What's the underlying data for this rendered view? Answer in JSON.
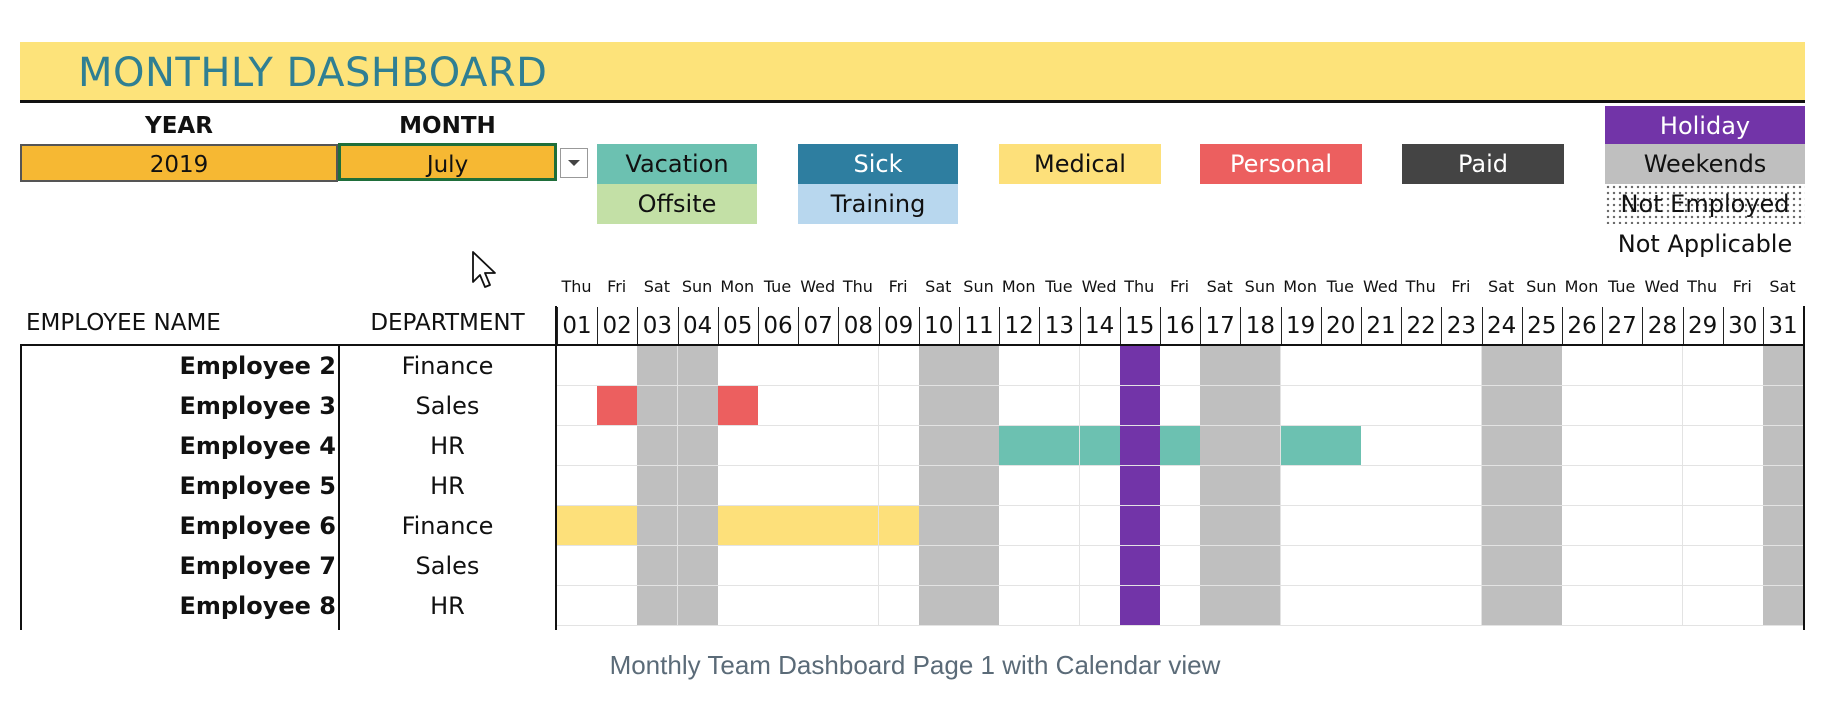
{
  "banner": {
    "title": "MONTHLY DASHBOARD"
  },
  "selectors": {
    "year_label": "YEAR",
    "year_value": "2019",
    "month_label": "MONTH",
    "month_value": "July"
  },
  "legend": [
    {
      "key": "vacation",
      "label": "Vacation",
      "bg": "#6cc1b1",
      "fg": "#111111"
    },
    {
      "key": "sick",
      "label": "Sick",
      "bg": "#2e7ea0",
      "fg": "#ffffff"
    },
    {
      "key": "medical",
      "label": "Medical",
      "bg": "#fde07a",
      "fg": "#111111"
    },
    {
      "key": "personal",
      "label": "Personal",
      "bg": "#ec5f5f",
      "fg": "#ffffff"
    },
    {
      "key": "paid",
      "label": "Paid",
      "bg": "#444444",
      "fg": "#ffffff"
    },
    {
      "key": "holiday",
      "label": "Holiday",
      "bg": "#7234a8",
      "fg": "#ffffff"
    },
    {
      "key": "offsite",
      "label": "Offsite",
      "bg": "#c3e0a6",
      "fg": "#111111"
    },
    {
      "key": "training",
      "label": "Training",
      "bg": "#b8d7ee",
      "fg": "#111111"
    },
    {
      "key": "weekends",
      "label": "Weekends",
      "bg": "#bfbfbf",
      "fg": "#111111"
    },
    {
      "key": "not_employed",
      "label": "Not Employed",
      "bg": "#ffffff",
      "fg": "#111111"
    },
    {
      "key": "not_applicable",
      "label": "Not Applicable",
      "bg": "#ffffff",
      "fg": "#111111"
    }
  ],
  "table": {
    "name_header": "EMPLOYEE NAME",
    "dept_header": "DEPARTMENT",
    "day_names": [
      "Thu",
      "Fri",
      "Sat",
      "Sun",
      "Mon",
      "Tue",
      "Wed",
      "Thu",
      "Fri",
      "Sat",
      "Sun",
      "Mon",
      "Tue",
      "Wed",
      "Thu",
      "Fri",
      "Sat",
      "Sun",
      "Mon",
      "Tue",
      "Wed",
      "Thu",
      "Fri",
      "Sat",
      "Sun",
      "Mon",
      "Tue",
      "Wed",
      "Thu",
      "Fri",
      "Sat"
    ],
    "day_numbers": [
      "01",
      "02",
      "03",
      "04",
      "05",
      "06",
      "07",
      "08",
      "09",
      "10",
      "11",
      "12",
      "13",
      "14",
      "15",
      "16",
      "17",
      "18",
      "19",
      "20",
      "21",
      "22",
      "23",
      "24",
      "25",
      "26",
      "27",
      "28",
      "29",
      "30",
      "31"
    ],
    "weekend_days": [
      3,
      4,
      10,
      11,
      17,
      18,
      24,
      25,
      31
    ],
    "holiday_days": [
      15
    ],
    "rows": [
      {
        "name": "Employee 2",
        "dept": "Finance",
        "marks": {}
      },
      {
        "name": "Employee 3",
        "dept": "Sales",
        "marks": {
          "2": "personal",
          "5": "personal"
        }
      },
      {
        "name": "Employee 4",
        "dept": "HR",
        "marks": {
          "12": "vacation",
          "13": "vacation",
          "14": "vacation",
          "16": "vacation",
          "19": "vacation",
          "20": "vacation"
        }
      },
      {
        "name": "Employee 5",
        "dept": "HR",
        "marks": {}
      },
      {
        "name": "Employee 6",
        "dept": "Finance",
        "marks": {
          "1": "medical",
          "2": "medical",
          "5": "medical",
          "6": "medical",
          "7": "medical",
          "8": "medical",
          "9": "medical"
        }
      },
      {
        "name": "Employee 7",
        "dept": "Sales",
        "marks": {}
      },
      {
        "name": "Employee 8",
        "dept": "HR",
        "marks": {}
      }
    ]
  },
  "caption": "Monthly Team Dashboard Page 1 with Calendar view"
}
